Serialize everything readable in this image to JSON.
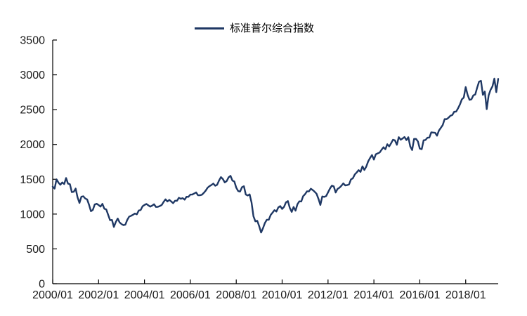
{
  "chart_data": {
    "type": "line",
    "title": "",
    "legend": [
      {
        "name": "标准普尔综合指数",
        "color": "#1f3864"
      }
    ],
    "legend_position": "top-center",
    "grid": false,
    "xlabel": "",
    "ylabel": "",
    "x_frequency": "monthly",
    "x_start": "2000/01",
    "x_end": "2019/06",
    "x_tick_labels": [
      "2000/01",
      "2002/01",
      "2004/01",
      "2006/01",
      "2008/01",
      "2010/01",
      "2012/01",
      "2014/01",
      "2016/01",
      "2018/01"
    ],
    "y_ticks": [
      0,
      500,
      1000,
      1500,
      2000,
      2500,
      3000,
      3500
    ],
    "ylim": [
      0,
      3500
    ],
    "axis_color": "#000000",
    "line_width": 2.4,
    "values": [
      1394,
      1366,
      1499,
      1452,
      1421,
      1455,
      1431,
      1518,
      1437,
      1429,
      1315,
      1320,
      1366,
      1240,
      1160,
      1249,
      1256,
      1224,
      1211,
      1134,
      1041,
      1060,
      1139,
      1148,
      1130,
      1107,
      1147,
      1077,
      1067,
      990,
      912,
      916,
      815,
      886,
      936,
      880,
      856,
      841,
      848,
      917,
      964,
      975,
      990,
      1008,
      996,
      1051,
      1058,
      1112,
      1131,
      1145,
      1126,
      1107,
      1121,
      1141,
      1102,
      1104,
      1115,
      1130,
      1174,
      1212,
      1181,
      1204,
      1181,
      1157,
      1192,
      1191,
      1234,
      1220,
      1229,
      1207,
      1249,
      1248,
      1280,
      1281,
      1295,
      1311,
      1270,
      1270,
      1277,
      1304,
      1336,
      1378,
      1401,
      1418,
      1438,
      1407,
      1421,
      1482,
      1531,
      1503,
      1455,
      1474,
      1527,
      1549,
      1481,
      1468,
      1379,
      1331,
      1323,
      1386,
      1400,
      1280,
      1267,
      1283,
      1166,
      969,
      896,
      903,
      826,
      735,
      798,
      873,
      919,
      919,
      987,
      1021,
      1057,
      1036,
      1096,
      1115,
      1074,
      1104,
      1169,
      1187,
      1089,
      1031,
      1102,
      1049,
      1141,
      1183,
      1181,
      1258,
      1286,
      1327,
      1326,
      1364,
      1345,
      1321,
      1292,
      1219,
      1131,
      1253,
      1247,
      1258,
      1312,
      1366,
      1408,
      1398,
      1310,
      1362,
      1379,
      1407,
      1441,
      1412,
      1416,
      1426,
      1498,
      1515,
      1569,
      1598,
      1631,
      1606,
      1686,
      1633,
      1682,
      1757,
      1806,
      1848,
      1783,
      1859,
      1872,
      1884,
      1924,
      1960,
      1931,
      2003,
      1972,
      2018,
      2068,
      2059,
      1995,
      2105,
      2068,
      2086,
      2107,
      2063,
      2104,
      1972,
      1920,
      2079,
      2080,
      2044,
      1940,
      1932,
      2060,
      2065,
      2097,
      2099,
      2174,
      2171,
      2168,
      2126,
      2199,
      2239,
      2279,
      2364,
      2363,
      2384,
      2412,
      2423,
      2470,
      2472,
      2519,
      2575,
      2648,
      2674,
      2824,
      2714,
      2641,
      2648,
      2705,
      2718,
      2816,
      2902,
      2914,
      2712,
      2760,
      2507,
      2704,
      2784,
      2834,
      2946,
      2752,
      2942
    ]
  }
}
